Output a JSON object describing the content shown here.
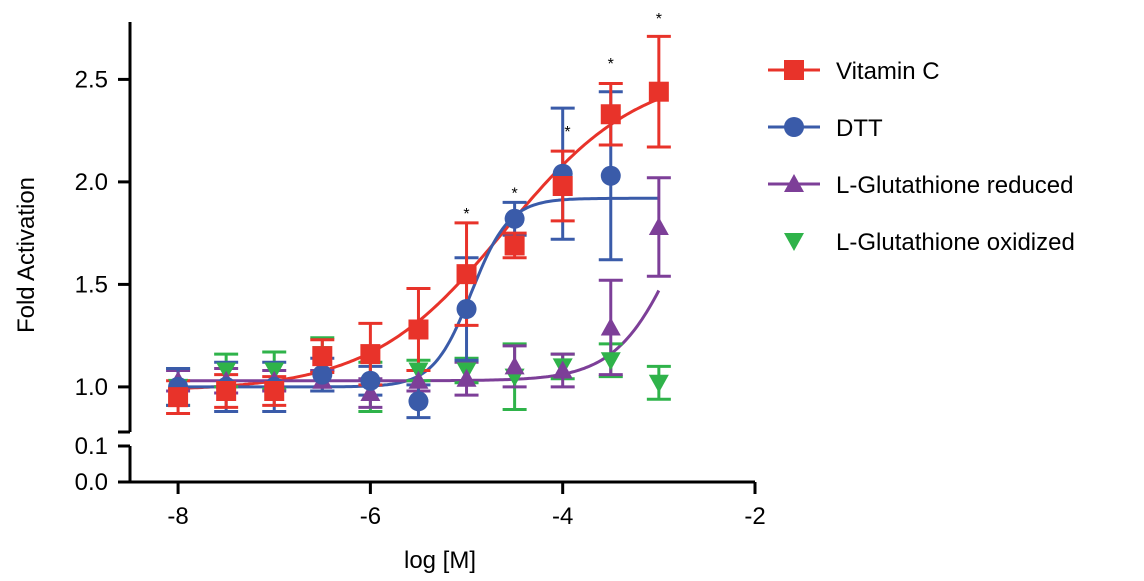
{
  "chart_data": {
    "type": "scatter",
    "xlabel": "log [M]",
    "ylabel": "Fold Activation",
    "xlim": [
      -8.5,
      -2
    ],
    "x_ticks": [
      "-8",
      "-6",
      "-4",
      "-2"
    ],
    "y_ticks_upper": [
      "1.0",
      "1.5",
      "2.0",
      "2.5"
    ],
    "y_ticks_lower": [
      "0.0",
      "0.1"
    ],
    "ylim_upper": [
      0.78,
      2.78
    ],
    "ylim_lower": [
      0.0,
      0.1
    ],
    "axis_break": true,
    "legend_position": "right",
    "x": [
      -8,
      -7.5,
      -7,
      -6.5,
      -6,
      -5.5,
      -5,
      -4.5,
      -4,
      -3.5,
      -3
    ],
    "series": [
      {
        "name": "Vitamin C",
        "color": "#e8332a",
        "marker": "square",
        "values": [
          0.95,
          0.98,
          0.98,
          1.15,
          1.16,
          1.28,
          1.55,
          1.69,
          1.98,
          2.33,
          2.44
        ],
        "err": [
          0.08,
          0.08,
          0.07,
          0.08,
          0.15,
          0.2,
          0.25,
          0.06,
          0.17,
          0.15,
          0.27
        ],
        "fit": {
          "bottom": 0.98,
          "top": 2.55,
          "logEC50": -4.6,
          "hill": 0.62
        }
      },
      {
        "name": "DTT",
        "color": "#3a5ba9",
        "marker": "circle",
        "values": [
          1.0,
          1.0,
          1.0,
          1.06,
          1.03,
          0.93,
          1.38,
          1.82,
          2.04,
          2.03,
          null
        ],
        "err": [
          0.09,
          0.12,
          0.12,
          0.08,
          0.07,
          0.08,
          0.25,
          0.08,
          0.32,
          0.41,
          null
        ],
        "fit": {
          "bottom": 1.0,
          "top": 1.92,
          "logEC50": -4.95,
          "hill": 2.2,
          "xend": -3
        }
      },
      {
        "name": "L-Glutathione reduced",
        "color": "#7d3f98",
        "marker": "triangle-up",
        "values": [
          1.03,
          1.03,
          1.03,
          1.03,
          0.97,
          1.03,
          1.04,
          1.1,
          1.08,
          1.29,
          1.78
        ],
        "err": [
          0.05,
          0.06,
          0.05,
          0.05,
          0.07,
          0.05,
          0.08,
          0.1,
          0.08,
          0.23,
          0.24
        ],
        "fit": {
          "bottom": 1.03,
          "top": 2.4,
          "logEC50": -2.75,
          "hill": 1.3,
          "xend": -3
        }
      },
      {
        "name": "L-Glutathione oxidized",
        "color": "#2fb34a",
        "marker": "triangle-down",
        "values": [
          1.0,
          1.08,
          1.08,
          1.16,
          1.0,
          1.08,
          1.08,
          1.05,
          1.1,
          1.13,
          1.02
        ],
        "err": [
          0.09,
          0.08,
          0.09,
          0.08,
          0.12,
          0.05,
          0.06,
          0.16,
          0.06,
          0.08,
          0.08
        ]
      }
    ],
    "annotations": [
      {
        "text": "*",
        "x": -5,
        "y": 1.82
      },
      {
        "text": "*",
        "x": -4.5,
        "y": 1.92
      },
      {
        "text": "*",
        "x": -3.95,
        "y": 2.22
      },
      {
        "text": "*",
        "x": -3.5,
        "y": 2.55
      },
      {
        "text": "*",
        "x": -3,
        "y": 2.77
      }
    ]
  }
}
